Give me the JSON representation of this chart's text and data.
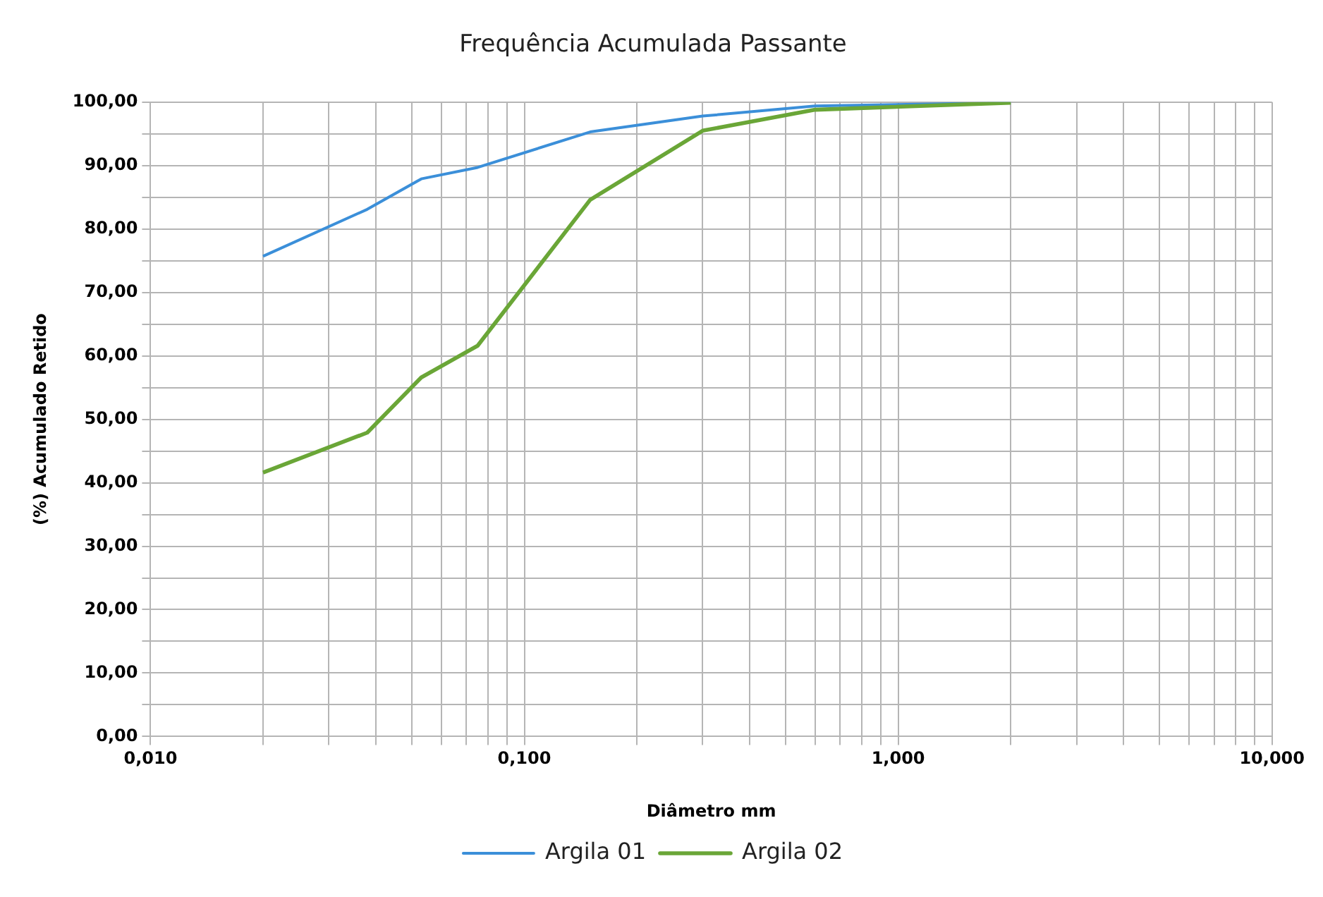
{
  "chart_data": {
    "type": "line",
    "title": "Frequência Acumulada Passante",
    "xlabel": "Diâmetro mm",
    "ylabel": "(%) Acumulado Retido",
    "x": [
      0.02,
      0.038,
      0.053,
      0.075,
      0.15,
      0.3,
      0.6,
      2.0
    ],
    "series": [
      {
        "name": "Argila 01",
        "color": "#3b8fd9",
        "values": [
          75.7,
          83.1,
          87.9,
          89.7,
          95.3,
          97.8,
          99.4,
          99.9
        ]
      },
      {
        "name": "Argila 02",
        "color": "#6aa637",
        "values": [
          41.6,
          47.9,
          56.6,
          61.6,
          84.6,
          95.5,
          98.8,
          99.9
        ]
      }
    ],
    "log": "x",
    "xlim": [
      0.01,
      10
    ],
    "ylim": [
      0,
      100
    ],
    "xticks": [
      {
        "value": 0.01,
        "label": "0,010"
      },
      {
        "value": 0.02,
        "label": null
      },
      {
        "value": 0.03,
        "label": null
      },
      {
        "value": 0.04,
        "label": null
      },
      {
        "value": 0.05,
        "label": null
      },
      {
        "value": 0.06,
        "label": null
      },
      {
        "value": 0.07,
        "label": null
      },
      {
        "value": 0.08,
        "label": null
      },
      {
        "value": 0.09,
        "label": null
      },
      {
        "value": 0.1,
        "label": "0,100"
      },
      {
        "value": 0.2,
        "label": null
      },
      {
        "value": 0.3,
        "label": null
      },
      {
        "value": 0.4,
        "label": null
      },
      {
        "value": 0.5,
        "label": null
      },
      {
        "value": 0.6,
        "label": null
      },
      {
        "value": 0.7,
        "label": null
      },
      {
        "value": 0.8,
        "label": null
      },
      {
        "value": 0.9,
        "label": null
      },
      {
        "value": 1,
        "label": "1,000"
      },
      {
        "value": 2,
        "label": null
      },
      {
        "value": 3,
        "label": null
      },
      {
        "value": 4,
        "label": null
      },
      {
        "value": 5,
        "label": null
      },
      {
        "value": 6,
        "label": null
      },
      {
        "value": 7,
        "label": null
      },
      {
        "value": 8,
        "label": null
      },
      {
        "value": 9,
        "label": null
      },
      {
        "value": 10,
        "label": "10,000"
      }
    ],
    "yticks": [
      {
        "value": 0,
        "label": "0,00"
      },
      {
        "value": 5,
        "label": null
      },
      {
        "value": 10,
        "label": "10,00"
      },
      {
        "value": 15,
        "label": null
      },
      {
        "value": 20,
        "label": "20,00"
      },
      {
        "value": 25,
        "label": null
      },
      {
        "value": 30,
        "label": "30,00"
      },
      {
        "value": 35,
        "label": null
      },
      {
        "value": 40,
        "label": "40,00"
      },
      {
        "value": 45,
        "label": null
      },
      {
        "value": 50,
        "label": "50,00"
      },
      {
        "value": 55,
        "label": null
      },
      {
        "value": 60,
        "label": "60,00"
      },
      {
        "value": 65,
        "label": null
      },
      {
        "value": 70,
        "label": "70,00"
      },
      {
        "value": 75,
        "label": null
      },
      {
        "value": 80,
        "label": "80,00"
      },
      {
        "value": 85,
        "label": null
      },
      {
        "value": 90,
        "label": "90,00"
      },
      {
        "value": 95,
        "label": null
      },
      {
        "value": 100,
        "label": "100,00"
      }
    ],
    "grid": true,
    "legend": "bottom",
    "marker": "none",
    "line_style": "solid"
  }
}
